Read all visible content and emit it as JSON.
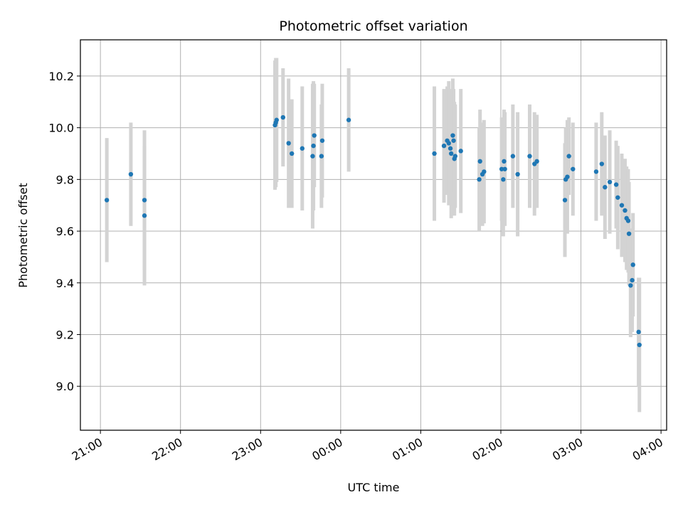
{
  "chart_data": {
    "type": "scatter",
    "title": "Photometric offset variation",
    "xlabel": "UTC time",
    "ylabel": "Photometric offset",
    "x_ticks": [
      "21:00",
      "22:00",
      "23:00",
      "00:00",
      "01:00",
      "02:00",
      "03:00",
      "04:00"
    ],
    "x_tick_hours": [
      0,
      1,
      2,
      3,
      4,
      5,
      6,
      7
    ],
    "x_origin_label": "21:00",
    "xlim_hours": [
      -0.25,
      7.07
    ],
    "y_ticks": [
      9.0,
      9.2,
      9.4,
      9.6,
      9.8,
      10.0,
      10.2
    ],
    "ylim": [
      8.83,
      10.34
    ],
    "grid": true,
    "colors": {
      "marker": "#1f77b4",
      "errorbar": "#d3d3d3",
      "grid": "#b0b0b0"
    },
    "series": [
      {
        "x_hours": [
          0.08,
          0.38,
          0.55,
          0.55,
          2.18,
          2.19,
          2.2,
          2.28,
          2.35,
          2.39,
          2.52,
          2.65,
          2.66,
          2.67,
          2.76,
          2.77,
          3.1,
          4.17,
          4.29,
          4.33,
          4.35,
          4.37,
          4.38,
          4.4,
          4.41,
          4.42,
          4.43,
          4.5,
          4.73,
          4.74,
          4.77,
          4.79,
          5.01,
          5.03,
          5.04,
          5.05,
          5.15,
          5.21,
          5.36,
          5.42,
          5.45,
          5.8,
          5.81,
          5.83,
          5.85,
          5.9,
          6.19,
          6.26,
          6.3,
          6.36,
          6.44,
          6.46,
          6.51,
          6.55,
          6.57,
          6.59,
          6.6,
          6.62,
          6.64,
          6.65,
          6.72,
          6.73
        ],
        "y": [
          9.72,
          9.82,
          9.72,
          9.66,
          10.01,
          10.02,
          10.03,
          10.04,
          9.94,
          9.9,
          9.92,
          9.89,
          9.93,
          9.97,
          9.89,
          9.95,
          10.03,
          9.9,
          9.93,
          9.95,
          9.94,
          9.92,
          9.9,
          9.97,
          9.95,
          9.88,
          9.89,
          9.91,
          9.8,
          9.87,
          9.82,
          9.83,
          9.84,
          9.8,
          9.87,
          9.84,
          9.89,
          9.82,
          9.89,
          9.86,
          9.87,
          9.72,
          9.8,
          9.81,
          9.89,
          9.84,
          9.83,
          9.86,
          9.77,
          9.79,
          9.78,
          9.73,
          9.7,
          9.68,
          9.65,
          9.64,
          9.59,
          9.39,
          9.41,
          9.47,
          9.21,
          9.16
        ],
        "err": [
          0.24,
          0.2,
          0.27,
          0.27,
          0.25,
          0.25,
          0.24,
          0.19,
          0.25,
          0.21,
          0.24,
          0.28,
          0.25,
          0.2,
          0.2,
          0.22,
          0.2,
          0.26,
          0.22,
          0.21,
          0.24,
          0.2,
          0.25,
          0.22,
          0.2,
          0.22,
          0.2,
          0.24,
          0.2,
          0.2,
          0.2,
          0.2,
          0.2,
          0.22,
          0.2,
          0.22,
          0.2,
          0.24,
          0.2,
          0.2,
          0.18,
          0.22,
          0.2,
          0.22,
          0.15,
          0.18,
          0.19,
          0.2,
          0.2,
          0.2,
          0.17,
          0.2,
          0.2,
          0.2,
          0.2,
          0.2,
          0.2,
          0.2,
          0.2,
          0.2,
          0.21,
          0.26
        ]
      }
    ]
  }
}
